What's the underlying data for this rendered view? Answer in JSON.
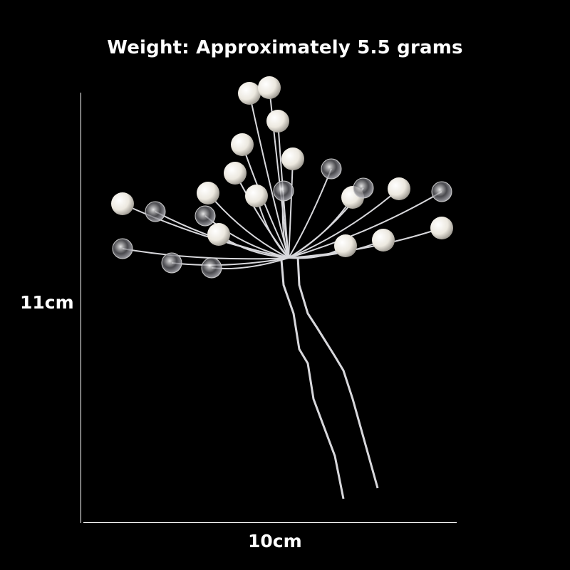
{
  "title": "Weight: Approximately 5.5 grams",
  "dimensions": {
    "height_label": "11cm",
    "width_label": "10cm"
  },
  "colors": {
    "background": "#000000",
    "text": "#ffffff",
    "wire": "#d8d8dc",
    "pearl": "#f2efe8"
  }
}
